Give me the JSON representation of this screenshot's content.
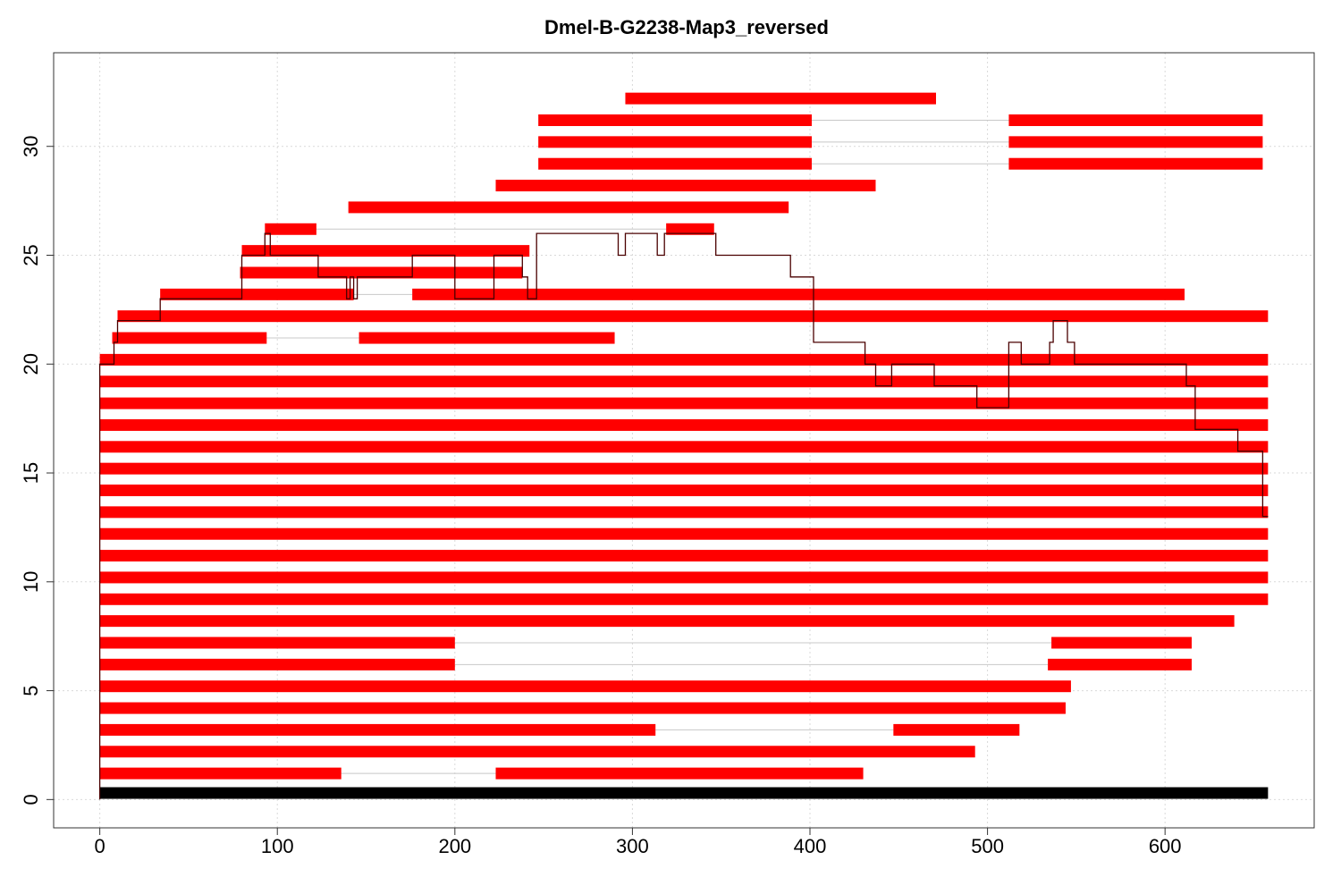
{
  "chart_data": {
    "type": "bar",
    "subtype": "segmented-horizontal-alignment",
    "title": "Dmel-B-G2238-Map3_reversed",
    "xlabel": "",
    "ylabel": "",
    "xlim": [
      -26,
      684
    ],
    "ylim": [
      -1.3,
      34.3
    ],
    "x_ticks": [
      "0",
      "100",
      "200",
      "300",
      "400",
      "500",
      "600"
    ],
    "y_ticks": [
      "0",
      "5",
      "10",
      "15",
      "20",
      "25",
      "30"
    ],
    "grid": true,
    "colors": {
      "segment": "#ff0000",
      "reference": "#000000",
      "connector": "#c8c8c8",
      "coverage": "#4a0000",
      "grid": "#d9d9d9"
    },
    "reference": {
      "y": 0.3,
      "start": 0,
      "end": 658
    },
    "rows": [
      {
        "y": 1.2,
        "segments": [
          [
            0,
            136
          ],
          [
            223,
            430
          ]
        ]
      },
      {
        "y": 2.2,
        "segments": [
          [
            0,
            493
          ]
        ]
      },
      {
        "y": 3.2,
        "segments": [
          [
            0,
            313
          ],
          [
            447,
            518
          ]
        ]
      },
      {
        "y": 4.2,
        "segments": [
          [
            0,
            544
          ]
        ]
      },
      {
        "y": 5.2,
        "segments": [
          [
            0,
            547
          ]
        ]
      },
      {
        "y": 6.2,
        "segments": [
          [
            0,
            200
          ],
          [
            534,
            615
          ]
        ]
      },
      {
        "y": 7.2,
        "segments": [
          [
            0,
            200
          ],
          [
            536,
            615
          ]
        ]
      },
      {
        "y": 8.2,
        "segments": [
          [
            0,
            639
          ]
        ]
      },
      {
        "y": 9.2,
        "segments": [
          [
            0,
            658
          ]
        ]
      },
      {
        "y": 10.2,
        "segments": [
          [
            0,
            658
          ]
        ]
      },
      {
        "y": 11.2,
        "segments": [
          [
            0,
            658
          ]
        ]
      },
      {
        "y": 12.2,
        "segments": [
          [
            0,
            658
          ]
        ]
      },
      {
        "y": 13.2,
        "segments": [
          [
            0,
            658
          ]
        ]
      },
      {
        "y": 14.2,
        "segments": [
          [
            0,
            658
          ]
        ]
      },
      {
        "y": 15.2,
        "segments": [
          [
            0,
            658
          ]
        ]
      },
      {
        "y": 16.2,
        "segments": [
          [
            0,
            658
          ]
        ]
      },
      {
        "y": 17.2,
        "segments": [
          [
            0,
            658
          ]
        ]
      },
      {
        "y": 18.2,
        "segments": [
          [
            0,
            658
          ]
        ]
      },
      {
        "y": 19.2,
        "segments": [
          [
            0,
            658
          ]
        ]
      },
      {
        "y": 20.2,
        "segments": [
          [
            0,
            658
          ]
        ]
      },
      {
        "y": 21.2,
        "segments": [
          [
            7,
            94
          ],
          [
            146,
            290
          ]
        ]
      },
      {
        "y": 22.2,
        "segments": [
          [
            10,
            658
          ]
        ]
      },
      {
        "y": 23.2,
        "segments": [
          [
            34,
            143
          ],
          [
            176,
            611
          ]
        ]
      },
      {
        "y": 24.2,
        "segments": [
          [
            79,
            238
          ]
        ]
      },
      {
        "y": 25.2,
        "segments": [
          [
            80,
            242
          ]
        ]
      },
      {
        "y": 26.2,
        "segments": [
          [
            93,
            122
          ],
          [
            319,
            346
          ]
        ]
      },
      {
        "y": 27.2,
        "segments": [
          [
            140,
            388
          ]
        ]
      },
      {
        "y": 28.2,
        "segments": [
          [
            223,
            437
          ]
        ]
      },
      {
        "y": 29.2,
        "segments": [
          [
            247,
            401
          ],
          [
            512,
            655
          ]
        ]
      },
      {
        "y": 30.2,
        "segments": [
          [
            247,
            401
          ],
          [
            512,
            655
          ]
        ]
      },
      {
        "y": 31.2,
        "segments": [
          [
            247,
            401
          ],
          [
            512,
            655
          ]
        ]
      },
      {
        "y": 32.2,
        "segments": [
          [
            296,
            471
          ]
        ]
      }
    ],
    "coverage": {
      "x": [
        0,
        0,
        8,
        8,
        10,
        10,
        34,
        34,
        80,
        80,
        93,
        93,
        96,
        96,
        123,
        123,
        139,
        139,
        141,
        141,
        143,
        143,
        145,
        145,
        176,
        176,
        200,
        200,
        222,
        222,
        238,
        238,
        241,
        241,
        246,
        246,
        292,
        292,
        296,
        296,
        314,
        314,
        318,
        318,
        347,
        347,
        389,
        389,
        402,
        402,
        431,
        431,
        437,
        437,
        446,
        446,
        470,
        470,
        494,
        494,
        512,
        512,
        519,
        519,
        535,
        535,
        537,
        537,
        545,
        545,
        549,
        549,
        612,
        612,
        617,
        617,
        641,
        641,
        655,
        655,
        658
      ],
      "y": [
        0,
        20,
        20,
        21,
        21,
        22,
        22,
        23,
        23,
        25,
        25,
        26,
        26,
        25,
        25,
        24,
        24,
        23,
        23,
        24,
        24,
        23,
        23,
        24,
        24,
        25,
        25,
        23,
        23,
        25,
        25,
        24,
        24,
        23,
        23,
        26,
        26,
        25,
        25,
        26,
        26,
        25,
        25,
        26,
        26,
        25,
        25,
        24,
        24,
        21,
        21,
        20,
        20,
        19,
        19,
        20,
        20,
        19,
        19,
        18,
        18,
        21,
        21,
        20,
        20,
        21,
        21,
        22,
        22,
        21,
        21,
        20,
        20,
        19,
        19,
        17,
        17,
        16,
        16,
        13,
        13
      ]
    }
  }
}
